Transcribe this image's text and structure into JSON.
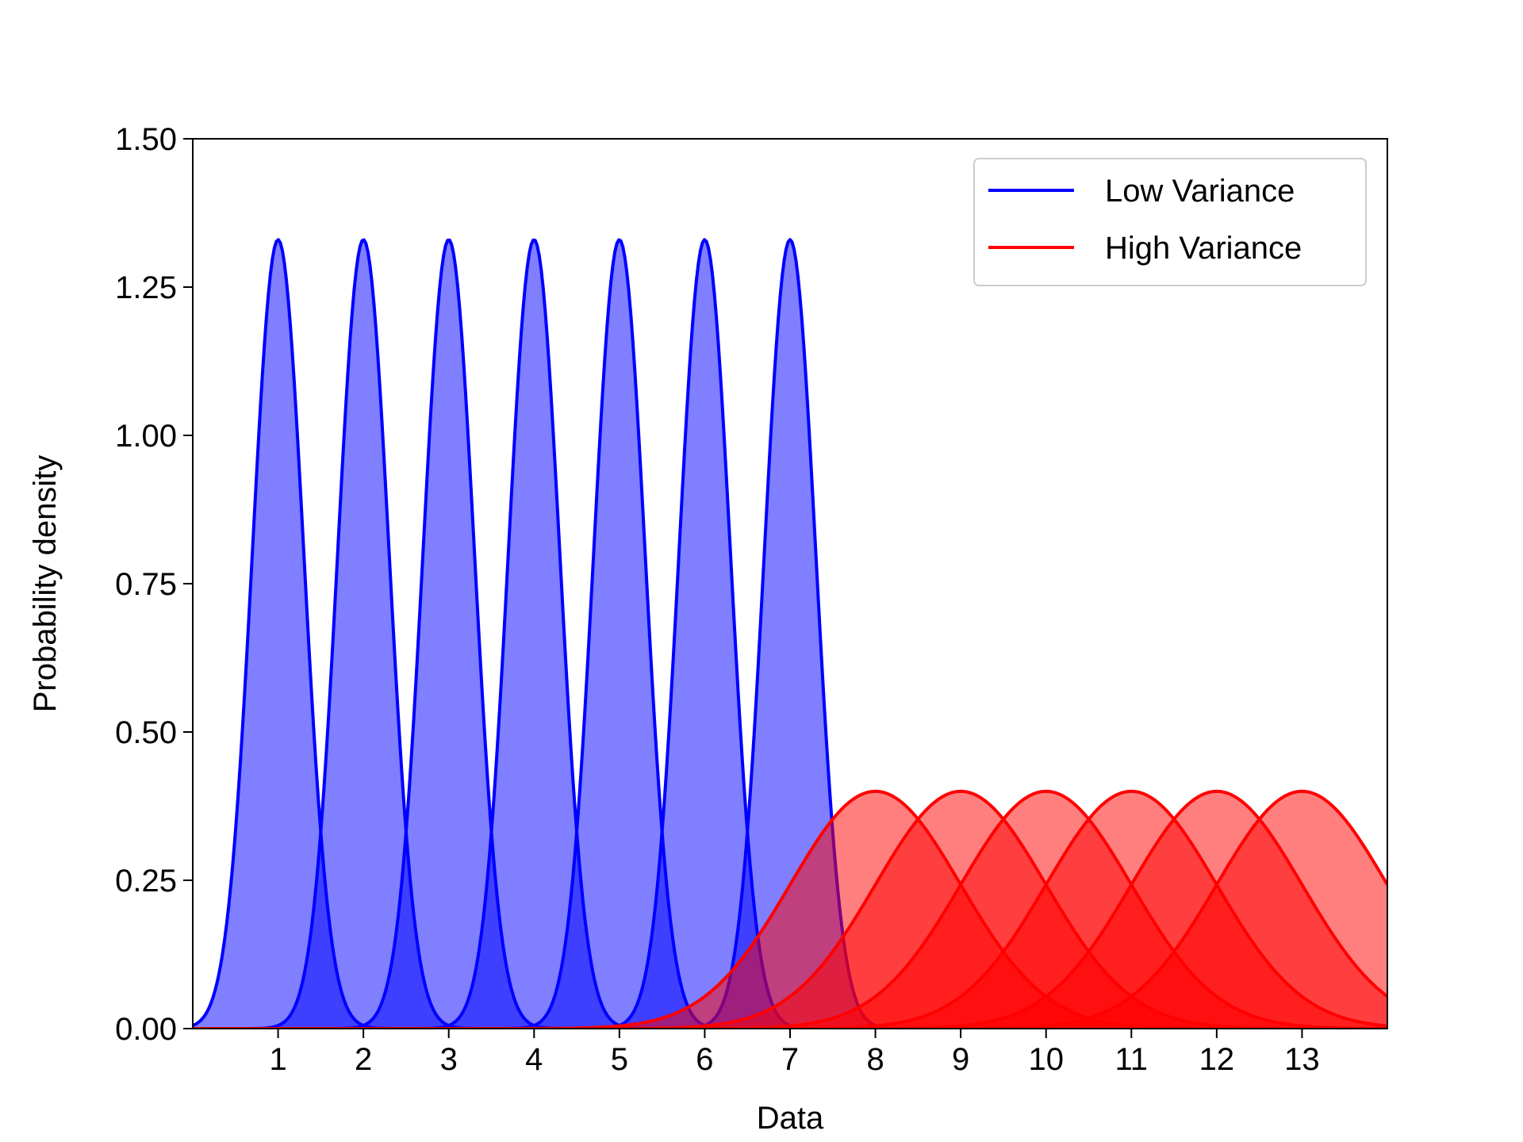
{
  "chart_data": {
    "type": "area",
    "title": "",
    "xlabel": "Data",
    "ylabel": "Probability density",
    "xlim": [
      0,
      14
    ],
    "ylim": [
      0,
      1.5
    ],
    "x_ticks": [
      1,
      2,
      3,
      4,
      5,
      6,
      7,
      8,
      9,
      10,
      11,
      12,
      13
    ],
    "x_tick_labels": [
      "1",
      "2",
      "3",
      "4",
      "5",
      "6",
      "7",
      "8",
      "9",
      "10",
      "11",
      "12",
      "13"
    ],
    "y_ticks": [
      0,
      0.25,
      0.5,
      0.75,
      1.0,
      1.25,
      1.5
    ],
    "y_tick_labels": [
      "0.00",
      "0.25",
      "0.50",
      "0.75",
      "1.00",
      "1.25",
      "1.50"
    ],
    "grid": false,
    "legend_position": "top-right",
    "series": [
      {
        "name": "Low Variance",
        "color": "#0000ff",
        "fill_opacity": 0.5,
        "distribution": "normal",
        "sigma": 0.3,
        "peak_density": 1.33,
        "means": [
          1,
          2,
          3,
          4,
          5,
          6,
          7
        ]
      },
      {
        "name": "High Variance",
        "color": "#ff0000",
        "fill_opacity": 0.5,
        "distribution": "normal",
        "sigma": 1.0,
        "peak_density": 0.4,
        "means": [
          8,
          9,
          10,
          11,
          12,
          13
        ]
      }
    ]
  }
}
